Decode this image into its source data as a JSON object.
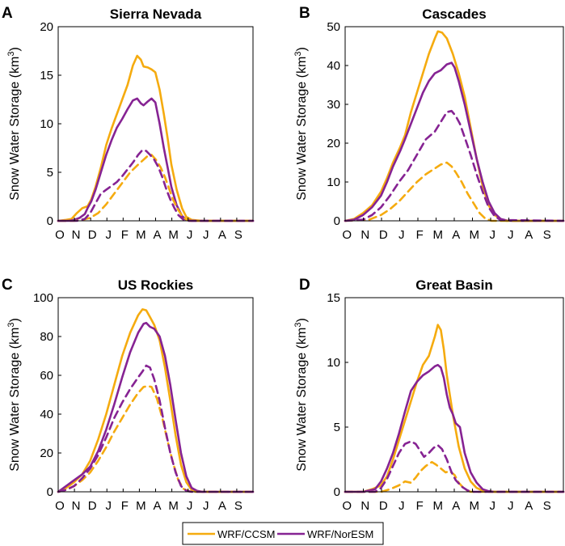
{
  "colors": {
    "ccsm": "#f5ab0f",
    "noresm": "#862393"
  },
  "legend": {
    "ccsm_label": "WRF/CCSM",
    "noresm_label": "WRF/NorESM"
  },
  "chart_data": [
    {
      "type": "line",
      "letter": "A",
      "title": "Sierra Nevada",
      "ylabel": "Snow Water Storage (km",
      "ylabel_sup": "3",
      "ylabel_close": ")",
      "ylim": [
        0,
        20
      ],
      "yticks": [
        0,
        5,
        10,
        15,
        20
      ],
      "xlim": [
        0,
        365
      ],
      "xticks": [
        "O",
        "N",
        "D",
        "J",
        "F",
        "M",
        "A",
        "M",
        "J",
        "J",
        "A",
        "S"
      ],
      "series": [
        {
          "name": "WRF/CCSM",
          "style": "solid",
          "color": "ccsm",
          "x": [
            0,
            15,
            25,
            35,
            45,
            55,
            62,
            70,
            80,
            90,
            100,
            110,
            120,
            130,
            140,
            148,
            155,
            160,
            168,
            175,
            182,
            190,
            198,
            205,
            212,
            222,
            232,
            240,
            250,
            260,
            270,
            280,
            365
          ],
          "y": [
            0,
            0.1,
            0.2,
            0.8,
            1.3,
            1.5,
            2.2,
            3.5,
            5.5,
            7.8,
            9.5,
            11,
            12.5,
            14,
            16,
            17,
            16.6,
            15.9,
            15.8,
            15.6,
            15.3,
            13.5,
            11,
            8.5,
            5.8,
            3.2,
            1.3,
            0.4,
            0.1,
            0.05,
            0,
            0,
            0
          ]
        },
        {
          "name": "WRF/NorESM",
          "style": "solid",
          "color": "noresm",
          "x": [
            0,
            20,
            30,
            40,
            50,
            55,
            62,
            70,
            80,
            90,
            100,
            110,
            120,
            130,
            140,
            148,
            155,
            160,
            168,
            175,
            182,
            190,
            198,
            205,
            212,
            222,
            232,
            240,
            250,
            260,
            270,
            365
          ],
          "y": [
            0,
            0,
            0.1,
            0.3,
            0.7,
            1.3,
            2.0,
            3.2,
            5.0,
            6.8,
            8.3,
            9.6,
            10.5,
            11.5,
            12.4,
            12.6,
            12.1,
            11.9,
            12.3,
            12.6,
            12.2,
            10,
            7.5,
            5.5,
            3.5,
            1.6,
            0.5,
            0.1,
            0,
            0,
            0,
            0
          ]
        },
        {
          "name": "WRF/CCSM",
          "style": "dashed",
          "color": "ccsm",
          "x": [
            0,
            30,
            45,
            60,
            75,
            90,
            105,
            120,
            135,
            150,
            160,
            168,
            175,
            183,
            192,
            200,
            208,
            215,
            225,
            235,
            245,
            365
          ],
          "y": [
            0,
            0,
            0.1,
            0.3,
            0.8,
            1.7,
            2.8,
            3.9,
            5.0,
            5.8,
            6.3,
            6.7,
            6.8,
            6.3,
            5.5,
            4.5,
            3.3,
            2.2,
            1.1,
            0.3,
            0,
            0
          ]
        },
        {
          "name": "WRF/NorESM",
          "style": "dashed",
          "color": "noresm",
          "x": [
            0,
            35,
            50,
            60,
            70,
            80,
            90,
            100,
            110,
            120,
            130,
            140,
            150,
            158,
            165,
            172,
            180,
            188,
            195,
            203,
            210,
            218,
            225,
            235,
            245,
            365
          ],
          "y": [
            0,
            0,
            0.2,
            0.8,
            1.8,
            2.8,
            3.2,
            3.6,
            4.0,
            4.6,
            5.3,
            6.0,
            6.8,
            7.3,
            7.2,
            6.8,
            6.3,
            5.5,
            4.5,
            3.2,
            2.2,
            1.3,
            0.6,
            0.1,
            0,
            0
          ]
        }
      ]
    },
    {
      "type": "line",
      "letter": "B",
      "title": "Cascades",
      "ylabel": "Snow Water Storage (km",
      "ylabel_sup": "3",
      "ylabel_close": ")",
      "ylim": [
        0,
        50
      ],
      "yticks": [
        0,
        10,
        20,
        30,
        40,
        50
      ],
      "xlim": [
        0,
        365
      ],
      "xticks": [
        "O",
        "N",
        "D",
        "J",
        "F",
        "M",
        "A",
        "M",
        "J",
        "J",
        "A",
        "S"
      ],
      "series": [
        {
          "name": "WRF/CCSM",
          "style": "solid",
          "color": "ccsm",
          "x": [
            0,
            15,
            30,
            45,
            60,
            70,
            80,
            92,
            100,
            110,
            120,
            130,
            140,
            150,
            155,
            162,
            170,
            180,
            190,
            200,
            210,
            220,
            230,
            240,
            250,
            260,
            270,
            365
          ],
          "y": [
            0,
            0.5,
            2,
            4,
            7.5,
            11,
            15,
            19,
            22,
            28,
            33,
            38,
            43,
            47,
            48.8,
            48.5,
            47,
            43,
            38,
            32,
            24,
            16,
            9,
            4,
            1.5,
            0.4,
            0,
            0
          ]
        },
        {
          "name": "WRF/NorESM",
          "style": "solid",
          "color": "noresm",
          "x": [
            0,
            15,
            30,
            45,
            60,
            70,
            80,
            92,
            100,
            110,
            120,
            130,
            140,
            150,
            160,
            170,
            178,
            183,
            190,
            200,
            210,
            220,
            230,
            240,
            250,
            260,
            270,
            280,
            365
          ],
          "y": [
            0,
            0.3,
            1.5,
            3.5,
            6.5,
            10,
            14,
            18,
            21,
            25,
            29,
            33,
            36,
            38,
            38.8,
            40.3,
            40.7,
            39.5,
            36,
            30,
            23,
            16,
            10,
            5,
            2,
            0.5,
            0.1,
            0,
            0
          ]
        },
        {
          "name": "WRF/CCSM",
          "style": "dashed",
          "color": "ccsm",
          "x": [
            0,
            40,
            60,
            75,
            90,
            105,
            120,
            135,
            150,
            160,
            170,
            178,
            185,
            195,
            205,
            215,
            225,
            235,
            245,
            365
          ],
          "y": [
            0,
            0.3,
            1.5,
            3,
            5,
            7.5,
            10,
            12,
            13.5,
            14.5,
            15,
            14,
            12.5,
            10,
            7,
            4.5,
            2,
            0.5,
            0,
            0
          ]
        },
        {
          "name": "WRF/NorESM",
          "style": "dashed",
          "color": "noresm",
          "x": [
            0,
            30,
            45,
            60,
            75,
            90,
            105,
            120,
            135,
            150,
            160,
            170,
            178,
            185,
            192,
            200,
            210,
            220,
            230,
            240,
            250,
            260,
            365
          ],
          "y": [
            0,
            0.3,
            1.5,
            3.5,
            6.5,
            10,
            13,
            17,
            21,
            23,
            25.5,
            28,
            28.3,
            27,
            25,
            21.5,
            17,
            12,
            7.5,
            3.5,
            1.2,
            0.2,
            0
          ]
        }
      ]
    },
    {
      "type": "line",
      "letter": "C",
      "title": "US Rockies",
      "ylabel": "Snow Water Storage (km",
      "ylabel_sup": "3",
      "ylabel_close": ")",
      "ylim": [
        0,
        100
      ],
      "yticks": [
        0,
        20,
        40,
        60,
        80,
        100
      ],
      "xlim": [
        0,
        365
      ],
      "xticks": [
        "O",
        "N",
        "D",
        "J",
        "F",
        "M",
        "A",
        "M",
        "J",
        "J",
        "A",
        "S"
      ],
      "series": [
        {
          "name": "WRF/CCSM",
          "style": "solid",
          "color": "ccsm",
          "x": [
            0,
            15,
            30,
            45,
            60,
            75,
            90,
            105,
            120,
            135,
            150,
            158,
            165,
            172,
            180,
            190,
            200,
            210,
            220,
            230,
            240,
            250,
            260,
            270,
            280,
            365
          ],
          "y": [
            0,
            2,
            5,
            9,
            16,
            27,
            40,
            55,
            70,
            82,
            91,
            94,
            93.5,
            90,
            86,
            78,
            64,
            47,
            29,
            14,
            5,
            1,
            0.2,
            0,
            0,
            0
          ]
        },
        {
          "name": "WRF/NorESM",
          "style": "solid",
          "color": "noresm",
          "x": [
            0,
            15,
            30,
            45,
            60,
            75,
            90,
            105,
            120,
            135,
            150,
            160,
            165,
            172,
            180,
            190,
            200,
            210,
            220,
            230,
            240,
            250,
            260,
            270,
            280,
            365
          ],
          "y": [
            0,
            3,
            6,
            9,
            13,
            21,
            32,
            45,
            59,
            72,
            82,
            86.5,
            87,
            85,
            84,
            80,
            70,
            55,
            37,
            20,
            8,
            2,
            0.5,
            0,
            0,
            0
          ]
        },
        {
          "name": "WRF/CCSM",
          "style": "dashed",
          "color": "ccsm",
          "x": [
            0,
            15,
            30,
            45,
            60,
            75,
            90,
            105,
            120,
            135,
            150,
            160,
            168,
            175,
            185,
            195,
            205,
            215,
            225,
            235,
            245,
            255,
            365
          ],
          "y": [
            0,
            1,
            3,
            6,
            10,
            16,
            23,
            31,
            38,
            45,
            51,
            54,
            54.5,
            54,
            48,
            38,
            26,
            15,
            6,
            1.5,
            0.3,
            0,
            0
          ]
        },
        {
          "name": "WRF/NorESM",
          "style": "dashed",
          "color": "noresm",
          "x": [
            0,
            15,
            30,
            45,
            60,
            75,
            90,
            105,
            120,
            135,
            150,
            158,
            165,
            172,
            180,
            190,
            200,
            210,
            220,
            230,
            240,
            250,
            365
          ],
          "y": [
            0,
            1,
            3,
            7,
            12,
            19,
            28,
            38,
            46,
            53,
            59,
            62,
            65,
            64,
            58,
            47,
            33,
            20,
            10,
            3,
            0.5,
            0,
            0
          ]
        }
      ]
    },
    {
      "type": "line",
      "letter": "D",
      "title": "Great Basin",
      "ylabel": "Snow Water Storage (km",
      "ylabel_sup": "3",
      "ylabel_close": ")",
      "ylim": [
        0,
        15
      ],
      "yticks": [
        0,
        5,
        10,
        15
      ],
      "xlim": [
        0,
        365
      ],
      "xticks": [
        "O",
        "N",
        "D",
        "J",
        "F",
        "M",
        "A",
        "M",
        "J",
        "J",
        "A",
        "S"
      ],
      "series": [
        {
          "name": "WRF/CCSM",
          "style": "solid",
          "color": "ccsm",
          "x": [
            0,
            30,
            45,
            60,
            70,
            80,
            90,
            100,
            110,
            120,
            130,
            140,
            150,
            155,
            160,
            165,
            170,
            180,
            190,
            200,
            210,
            220,
            230,
            240,
            250,
            365
          ],
          "y": [
            0,
            0,
            0.2,
            0.5,
            1.2,
            2.5,
            4,
            5.5,
            7,
            8.5,
            9.8,
            10.5,
            12,
            12.9,
            12.5,
            11,
            9,
            6,
            3.5,
            1.8,
            0.8,
            0.3,
            0.1,
            0,
            0,
            0
          ]
        },
        {
          "name": "WRF/NorESM",
          "style": "solid",
          "color": "noresm",
          "x": [
            0,
            30,
            50,
            60,
            70,
            80,
            90,
            100,
            110,
            120,
            130,
            140,
            150,
            155,
            160,
            165,
            170,
            175,
            180,
            185,
            192,
            200,
            210,
            220,
            230,
            240,
            250,
            365
          ],
          "y": [
            0,
            0,
            0.2,
            0.8,
            1.8,
            3,
            4.5,
            6.2,
            7.8,
            8.5,
            9,
            9.3,
            9.7,
            9.8,
            9.6,
            8.8,
            7.5,
            6.5,
            6,
            5.3,
            5,
            3,
            1.5,
            0.7,
            0.2,
            0.05,
            0,
            0
          ]
        },
        {
          "name": "WRF/CCSM",
          "style": "dashed",
          "color": "ccsm",
          "x": [
            0,
            60,
            75,
            90,
            100,
            110,
            118,
            126,
            135,
            145,
            152,
            160,
            168,
            175,
            183,
            190,
            200,
            210,
            365
          ],
          "y": [
            0,
            0,
            0.2,
            0.5,
            0.8,
            0.7,
            1.1,
            1.6,
            2.0,
            2.3,
            2.1,
            1.8,
            1.5,
            1.6,
            1.3,
            0.7,
            0.2,
            0,
            0
          ]
        },
        {
          "name": "WRF/NorESM",
          "style": "dashed",
          "color": "noresm",
          "x": [
            0,
            50,
            60,
            70,
            80,
            90,
            100,
            110,
            118,
            125,
            132,
            140,
            148,
            155,
            162,
            170,
            178,
            185,
            195,
            205,
            215,
            365
          ],
          "y": [
            0,
            0,
            0.3,
            1,
            2,
            3,
            3.7,
            3.9,
            3.7,
            3.2,
            2.7,
            3.0,
            3.4,
            3.6,
            3.3,
            2.5,
            1.5,
            0.9,
            0.4,
            0.1,
            0,
            0
          ]
        }
      ]
    }
  ]
}
